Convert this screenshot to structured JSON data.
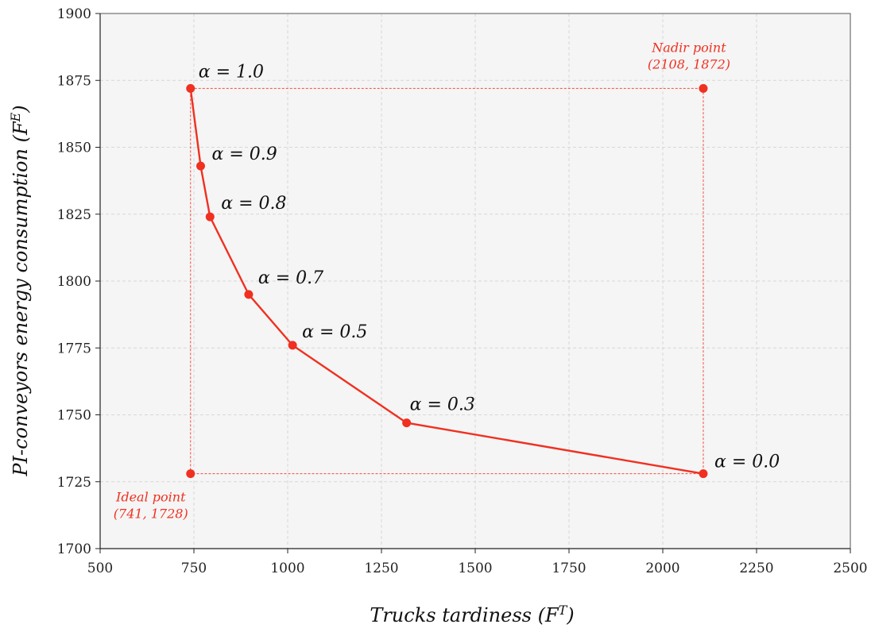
{
  "colors": {
    "series": "#f03020",
    "plot_background": "#f5f5f5",
    "grid": "#d7d7d7"
  },
  "chart_data": {
    "type": "line",
    "xlabel": {
      "base": "Trucks tardiness (F",
      "sup": "T",
      "tail": ")"
    },
    "ylabel": {
      "base": "PI-conveyors energy consumption (F",
      "sup": "E",
      "tail": ")"
    },
    "xlim": [
      500,
      2500
    ],
    "ylim": [
      1700,
      1900
    ],
    "x_ticks": [
      500,
      750,
      1000,
      1250,
      1500,
      1750,
      2000,
      2250,
      2500
    ],
    "y_ticks": [
      1700,
      1725,
      1750,
      1775,
      1800,
      1825,
      1850,
      1875,
      1900
    ],
    "grid": true,
    "series": [
      {
        "points": [
          {
            "x": 741,
            "y": 1872,
            "label": "α = 1.0"
          },
          {
            "x": 768,
            "y": 1843,
            "label": "α = 0.9"
          },
          {
            "x": 793,
            "y": 1824,
            "label": "α = 0.8"
          },
          {
            "x": 896,
            "y": 1795,
            "label": "α = 0.7"
          },
          {
            "x": 1013,
            "y": 1776,
            "label": "α = 0.5"
          },
          {
            "x": 1317,
            "y": 1747,
            "label": "α = 0.3"
          },
          {
            "x": 2108,
            "y": 1728,
            "label": "α = 0.0"
          }
        ]
      }
    ],
    "reference_points": [
      {
        "name": "Ideal point",
        "coords": "(741, 1728)",
        "x": 741,
        "y": 1728
      },
      {
        "name": "Nadir point",
        "coords": "(2108, 1872)",
        "x": 2108,
        "y": 1872
      }
    ],
    "reference_box": {
      "x_min": 741,
      "x_max": 2108,
      "y_min": 1728,
      "y_max": 1872,
      "style": "dotted"
    }
  }
}
